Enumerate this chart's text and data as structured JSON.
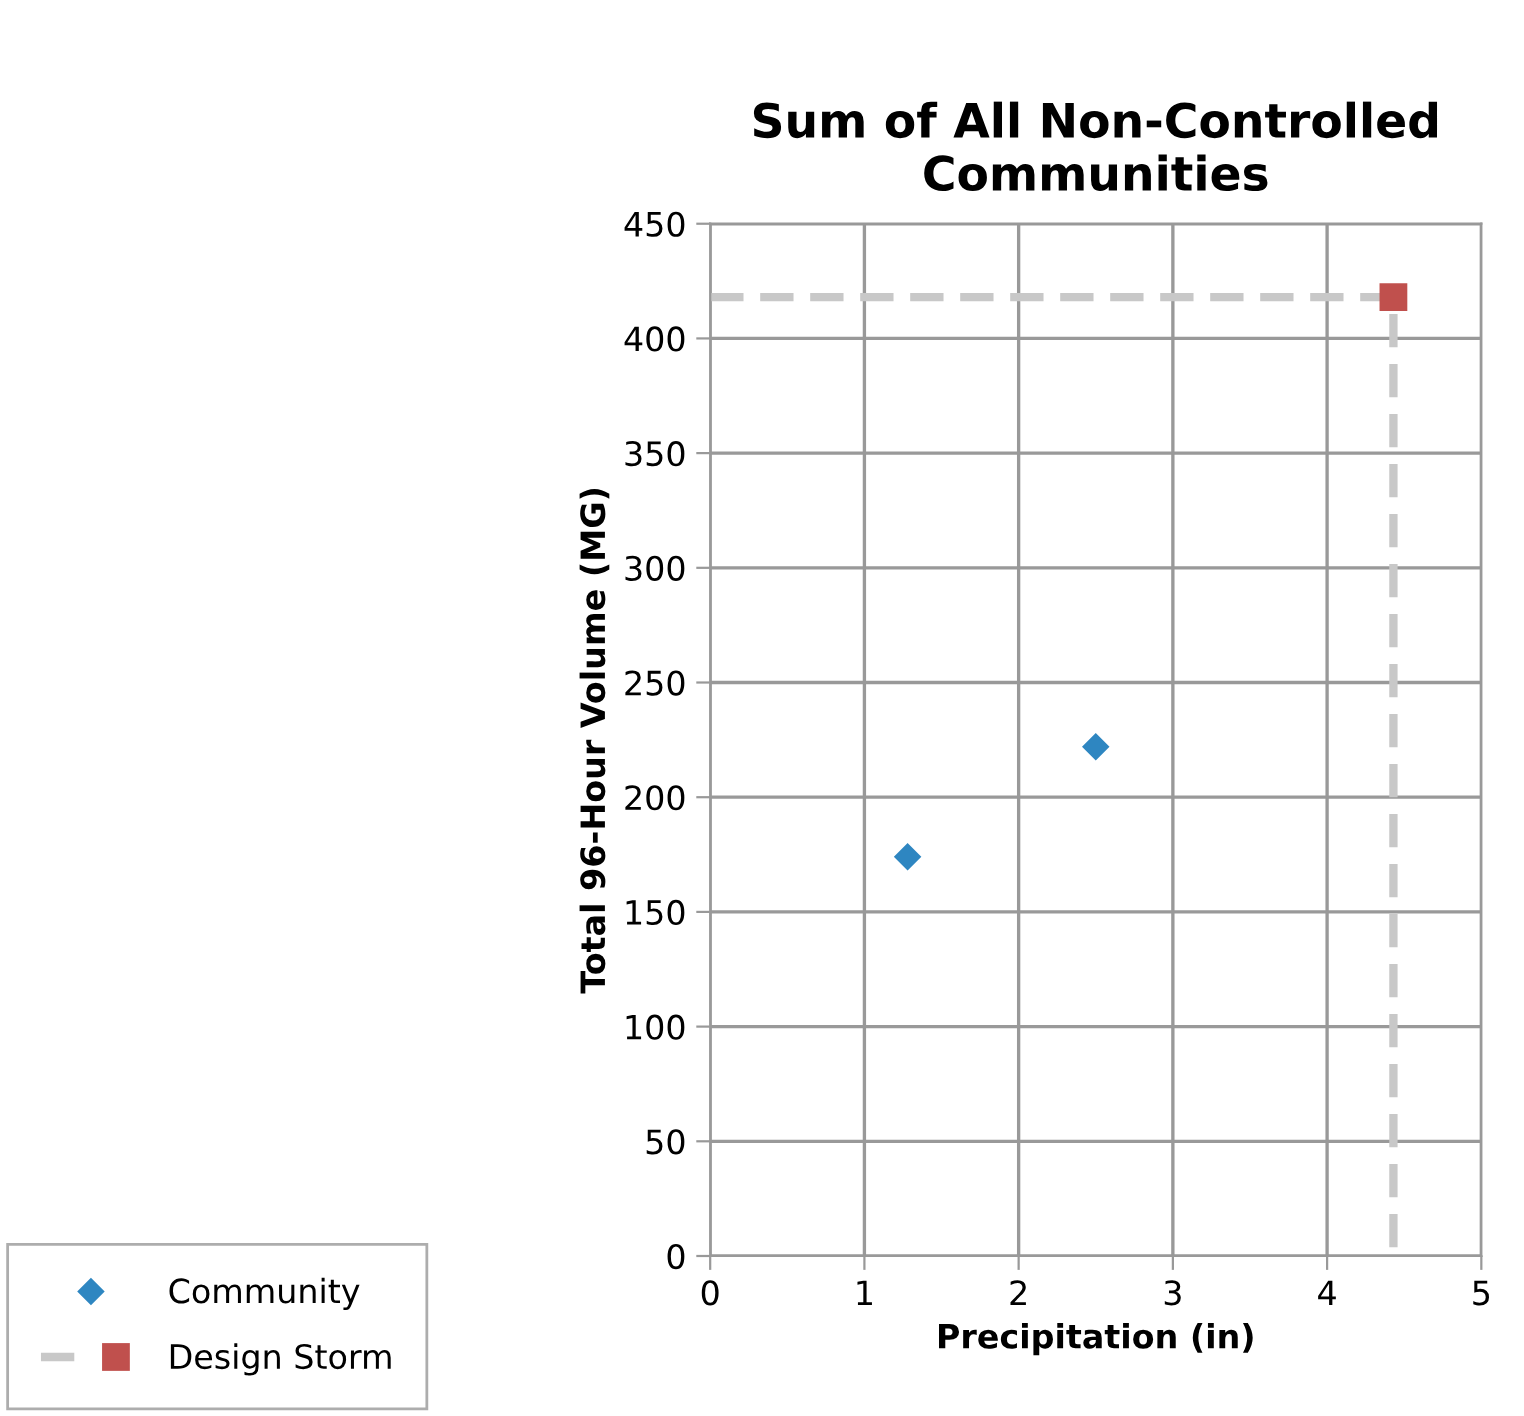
{
  "chart_data": {
    "type": "scatter",
    "title": "Sum of All Non-Controlled\nCommunities",
    "xlabel": "Precipitation (in)",
    "ylabel": "Total 96-Hour Volume (MG)",
    "xlim": [
      0,
      5
    ],
    "xticks": [
      0,
      1,
      2,
      3,
      4,
      5
    ],
    "ylim": [
      0,
      450
    ],
    "yticks": [
      0,
      50,
      100,
      150,
      200,
      250,
      300,
      350,
      400,
      450
    ],
    "grid": true,
    "legend": "bottom left",
    "series": [
      {
        "name": "Community",
        "marker": "diamond",
        "color": "#2e86c1",
        "x": [
          1.28,
          2.5
        ],
        "values": [
          174,
          222
        ]
      },
      {
        "name": "Design Storm",
        "marker": "square",
        "color": "#c0504d",
        "x": [
          4.43
        ],
        "values": [
          418
        ]
      },
      {
        "type": "line",
        "marker": "none",
        "line_style": "dashed",
        "color": "#c8c8c8",
        "x": [
          0,
          4.43,
          4.43
        ],
        "values": [
          418,
          418,
          0
        ]
      }
    ]
  }
}
